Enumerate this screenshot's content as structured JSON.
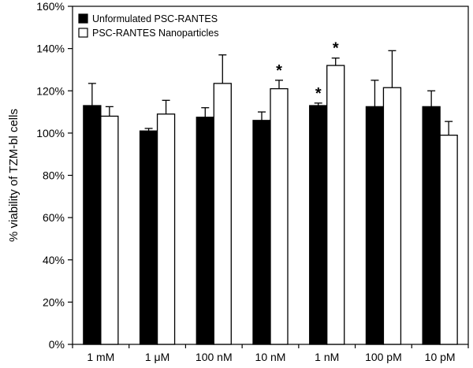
{
  "chart_data": {
    "type": "bar",
    "title": "",
    "xlabel": "",
    "ylabel": "% viability of TZM-bl cells",
    "ylim": [
      0,
      160
    ],
    "yticks": [
      0,
      20,
      40,
      60,
      80,
      100,
      120,
      140,
      160
    ],
    "ytick_labels": [
      "0%",
      "20%",
      "40%",
      "60%",
      "80%",
      "100%",
      "120%",
      "140%",
      "160%"
    ],
    "categories": [
      "1 mM",
      "1 μM",
      "100 nM",
      "10 nM",
      "1 nM",
      "100 pM",
      "10 pM"
    ],
    "grid": false,
    "legend_position": "top-left",
    "series": [
      {
        "name": "Unformulated PSC-RANTES",
        "fill": "#000000",
        "values": [
          113,
          101,
          107.5,
          106,
          113,
          112.5,
          112.5
        ],
        "errors": [
          10.5,
          1.2,
          4.5,
          4,
          1.2,
          12.5,
          7.5
        ],
        "significant": [
          false,
          false,
          false,
          false,
          true,
          false,
          false
        ]
      },
      {
        "name": "PSC-RANTES Nanoparticles",
        "fill": "#ffffff",
        "values": [
          108,
          109,
          123.5,
          121,
          132,
          121.5,
          99
        ],
        "errors": [
          4.5,
          6.5,
          13.5,
          4,
          3.5,
          17.5,
          6.5
        ],
        "significant": [
          false,
          false,
          false,
          true,
          true,
          false,
          false
        ]
      }
    ],
    "significance_marker": "*"
  }
}
